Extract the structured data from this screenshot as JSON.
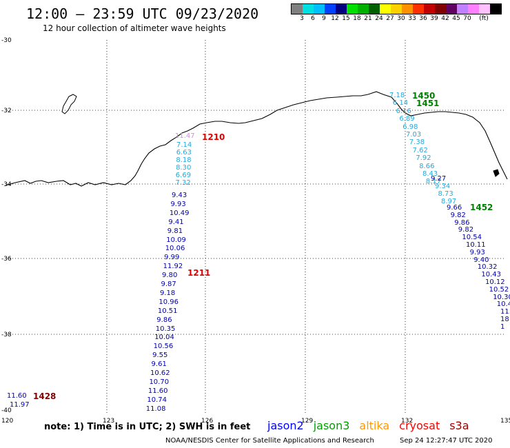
{
  "title": "12:00 – 23:59 UTC 09/23/2020",
  "subtitle": "12 hour collection of altimeter wave heights",
  "legend": {
    "colors": [
      "#808080",
      "#00e0e0",
      "#00bfff",
      "#0040ff",
      "#000080",
      "#00e000",
      "#00b000",
      "#006000",
      "#ffff00",
      "#ffd000",
      "#ff9000",
      "#ff3000",
      "#c00000",
      "#800000",
      "#600060",
      "#c080ff",
      "#ff80ff",
      "#ffc0ff",
      "#000000"
    ],
    "labels": [
      "3",
      "6",
      "9",
      "12",
      "15",
      "18",
      "21",
      "24",
      "27",
      "30",
      "33",
      "36",
      "39",
      "42",
      "45",
      "70",
      "(ft)"
    ]
  },
  "axes": {
    "lat_labels": [
      "-30",
      "-32",
      "-34",
      "-36",
      "-38",
      "-40"
    ],
    "lon_labels": [
      "120",
      "123",
      "126",
      "129",
      "132",
      "135"
    ]
  },
  "tracks": [
    {
      "color": "#dd88dd",
      "items": [
        "11.47"
      ]
    },
    {
      "color": "#22aadd",
      "items": [
        "7.14",
        "6.63",
        "8.18",
        "8.30",
        "6.69",
        "7.32"
      ]
    },
    {
      "color": "#0000aa",
      "items": [
        "9.43",
        "9.93",
        "10.49",
        "9.41",
        "9.81",
        "10.09",
        "10.06",
        "9.99",
        "11.92",
        "9.80",
        "9.87",
        "9.18",
        "10.96",
        "10.51",
        "9.86",
        "10.35",
        "10.04",
        "10.56",
        "9.55",
        "9.61",
        "10.62",
        "10.70",
        "11.60",
        "10.74",
        "11.08"
      ]
    },
    {
      "color": "#22aadd",
      "items": [
        "7.18",
        "6.14",
        "6.16",
        "6.89",
        "6.98",
        "7.03",
        "7.38",
        "7.62",
        "7.92",
        "8.66",
        "8.43",
        "8.17"
      ]
    },
    {
      "color": "#0000aa",
      "items": [
        "9.27"
      ]
    },
    {
      "color": "#22aadd",
      "items": [
        "9.34",
        "8.73",
        "8.97"
      ]
    },
    {
      "color": "#0000aa",
      "items": [
        "9.66",
        "9.82",
        "9.86",
        "9.82",
        "10.54",
        "10.11",
        "9.93",
        "9.40",
        "10.32",
        "10.43",
        "10.12",
        "10.52",
        "10.30",
        "10.4",
        "11.",
        "18",
        "1"
      ]
    },
    {
      "color": "#0000aa",
      "items": [
        "11.60",
        "11.97"
      ]
    }
  ],
  "times": [
    {
      "label": "1210",
      "color": "#e00000"
    },
    {
      "label": "1211",
      "color": "#e00000"
    },
    {
      "label": "1450",
      "color": "#008000"
    },
    {
      "label": "1451",
      "color": "#008000"
    },
    {
      "label": "1452",
      "color": "#008000"
    },
    {
      "label": "1428",
      "color": "#800000"
    }
  ],
  "satellites": [
    {
      "name": "jason2",
      "color": "#0000ff"
    },
    {
      "name": "jason3",
      "color": "#00a000"
    },
    {
      "name": "altika",
      "color": "#ff9900"
    },
    {
      "name": "cryosat",
      "color": "#ff0000"
    },
    {
      "name": "s3a",
      "color": "#990000"
    }
  ],
  "note": "note:  1) Time is in UTC;  2) SWH is in feet",
  "credit": "NOAA/NESDIS Center for Satellite Applications and Research",
  "stamp": "Sep 24 12:27:47 UTC 2020"
}
